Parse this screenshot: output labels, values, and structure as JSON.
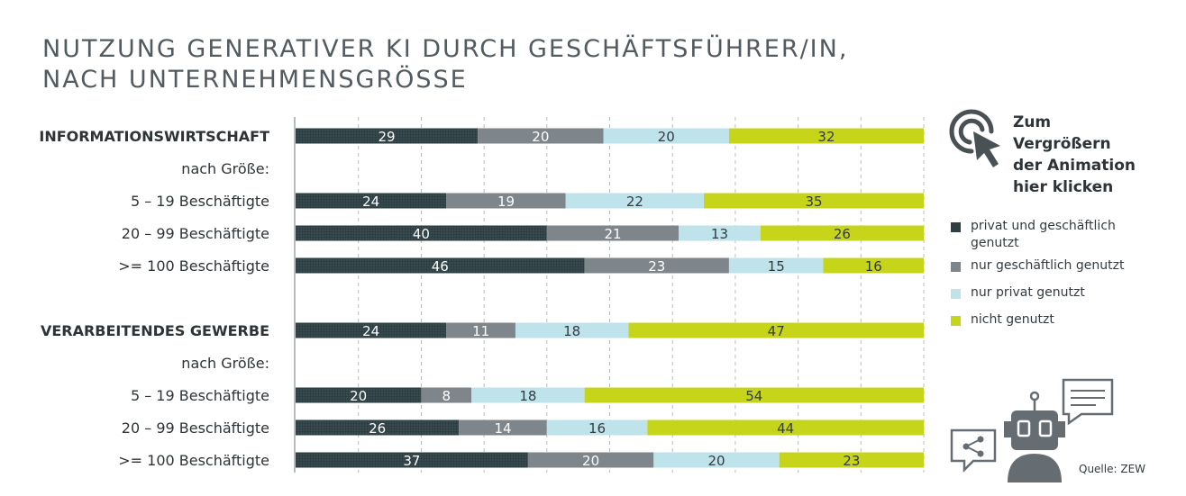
{
  "title_lines": [
    "NUTZUNG GENERATIVER KI DURCH GESCHÄFTSFÜHRER/IN,",
    "NACH UNTERNEHMENSGRÖSSE"
  ],
  "click_hint_lines": [
    "Zum Vergrößern",
    "der Animation",
    "hier klicken"
  ],
  "source": "Quelle: ZEW",
  "colors": {
    "privat_geschaeftlich": "#2d3f42",
    "nur_geschaeftlich": "#7f868b",
    "nur_privat": "#bfe3ea",
    "nicht_genutzt": "#c6d41a"
  },
  "icons": [
    "click-pointer-icon",
    "robot-icon",
    "chat-bubble-icon",
    "share-icon"
  ],
  "chart_data": {
    "type": "bar",
    "orientation": "horizontal",
    "stacked": true,
    "unit": "%",
    "xlim": [
      0,
      100
    ],
    "grid": true,
    "legend_position": "right",
    "categories": [
      "INFORMATIONSWIRTSCHAFT",
      "nach Größe:",
      "5 – 19 Beschäftigte",
      "20 – 99 Beschäftigte",
      ">= 100 Beschäftigte",
      "VERARBEITENDES GEWERBE",
      "nach Größe:",
      "5 – 19 Beschäftigte",
      "20 – 99 Beschäftigte",
      ">= 100 Beschäftigte"
    ],
    "series": [
      {
        "name": "privat und geschäftlich genutzt",
        "values": [
          29,
          null,
          24,
          40,
          46,
          24,
          null,
          20,
          26,
          37
        ]
      },
      {
        "name": "nur geschäftlich genutzt",
        "values": [
          20,
          null,
          19,
          21,
          23,
          11,
          null,
          8,
          14,
          20
        ]
      },
      {
        "name": "nur privat genutzt",
        "values": [
          20,
          null,
          22,
          13,
          15,
          18,
          null,
          18,
          16,
          20
        ]
      },
      {
        "name": "nicht genutzt",
        "values": [
          32,
          null,
          35,
          26,
          16,
          47,
          null,
          54,
          44,
          23
        ]
      }
    ]
  }
}
